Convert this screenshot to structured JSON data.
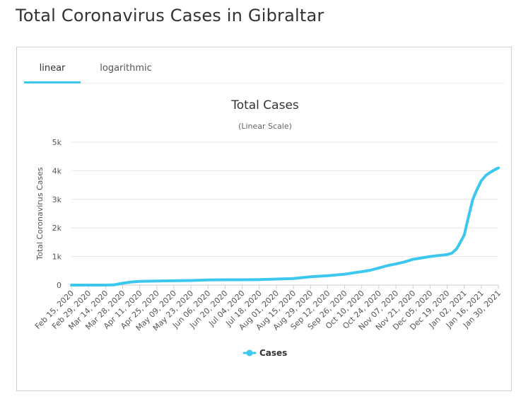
{
  "page": {
    "title": "Total Coronavirus Cases in Gibraltar"
  },
  "tabs": [
    {
      "label": "linear",
      "active": true
    },
    {
      "label": "logarithmic",
      "active": false
    }
  ],
  "colors": {
    "accent": "#3cc8ee",
    "series": "#3cc8ee",
    "grid": "#e6e6e6"
  },
  "chart_data": {
    "type": "line",
    "title": "Total Cases",
    "subtitle": "(Linear Scale)",
    "xlabel": "",
    "ylabel": "Total Coronavirus Cases",
    "ylim": [
      0,
      5000
    ],
    "y_ticks": [
      0,
      1000,
      2000,
      3000,
      4000,
      5000
    ],
    "y_tick_labels": [
      "0",
      "1k",
      "2k",
      "3k",
      "4k",
      "5k"
    ],
    "x_tick_labels": [
      "Feb 15, 2020",
      "Feb 29, 2020",
      "Mar 14, 2020",
      "Mar 28, 2020",
      "Apr 11, 2020",
      "Apr 25, 2020",
      "May 09, 2020",
      "May 23, 2020",
      "Jun 06, 2020",
      "Jun 20, 2020",
      "Jul 04, 2020",
      "Jul 18, 2020",
      "Aug 01, 2020",
      "Aug 15, 2020",
      "Aug 29, 2020",
      "Sep 12, 2020",
      "Sep 26, 2020",
      "Oct 10, 2020",
      "Oct 24, 2020",
      "Nov 07, 2020",
      "Nov 21, 2020",
      "Dec 05, 2020",
      "Dec 19, 2020",
      "Jan 02, 2021",
      "Jan 16, 2021",
      "Jan 30, 2021"
    ],
    "grid": true,
    "legend": "bottom-center",
    "series": [
      {
        "name": "Cases",
        "x": [
          "2020-02-15",
          "2020-03-14",
          "2020-03-21",
          "2020-03-28",
          "2020-04-04",
          "2020-04-11",
          "2020-04-25",
          "2020-05-09",
          "2020-05-23",
          "2020-06-06",
          "2020-06-20",
          "2020-07-04",
          "2020-07-18",
          "2020-08-01",
          "2020-08-15",
          "2020-08-29",
          "2020-09-12",
          "2020-09-26",
          "2020-10-10",
          "2020-10-17",
          "2020-10-24",
          "2020-10-31",
          "2020-11-07",
          "2020-11-14",
          "2020-11-21",
          "2020-12-05",
          "2020-12-19",
          "2020-12-23",
          "2020-12-27",
          "2021-01-02",
          "2021-01-05",
          "2021-01-09",
          "2021-01-12",
          "2021-01-16",
          "2021-01-20",
          "2021-01-24",
          "2021-01-28",
          "2021-01-30"
        ],
        "y": [
          0,
          0,
          10,
          65,
          110,
          130,
          140,
          150,
          160,
          180,
          185,
          185,
          190,
          210,
          230,
          290,
          330,
          380,
          470,
          520,
          600,
          680,
          740,
          810,
          900,
          1000,
          1070,
          1120,
          1280,
          1750,
          2300,
          3000,
          3300,
          3650,
          3850,
          3960,
          4060,
          4100
        ]
      }
    ]
  },
  "legend": {
    "label": "Cases"
  }
}
